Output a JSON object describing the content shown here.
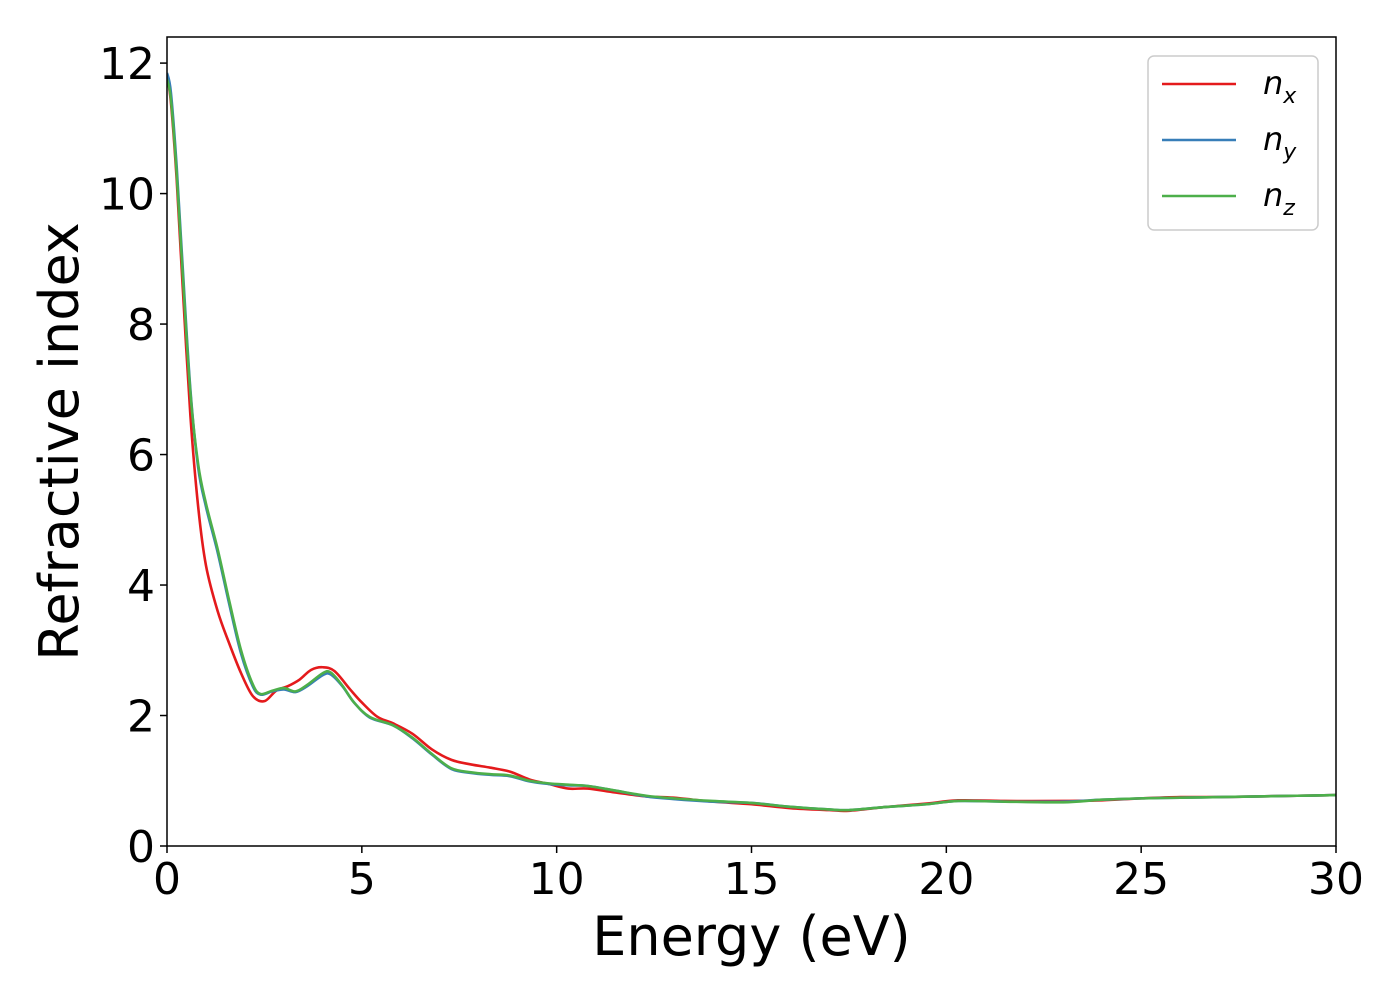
{
  "chart_data": {
    "type": "line",
    "title": "",
    "xlabel": "Energy (eV)",
    "ylabel": "Refractive index",
    "xlim": [
      0,
      30
    ],
    "ylim": [
      0,
      12.4
    ],
    "xticks": [
      0,
      5,
      10,
      15,
      20,
      25,
      30
    ],
    "yticks": [
      0,
      2,
      4,
      6,
      8,
      10,
      12
    ],
    "grid": false,
    "legend_position": "top-right",
    "series": [
      {
        "name": "n",
        "subscript": "x",
        "color": "#e41a1c",
        "points": [
          [
            0,
            11.8
          ],
          [
            0.1,
            11.4
          ],
          [
            0.25,
            10.2
          ],
          [
            0.4,
            8.6
          ],
          [
            0.6,
            6.6
          ],
          [
            0.8,
            5.2
          ],
          [
            1,
            4.3
          ],
          [
            1.3,
            3.6
          ],
          [
            1.6,
            3.1
          ],
          [
            1.9,
            2.65
          ],
          [
            2.2,
            2.3
          ],
          [
            2.5,
            2.22
          ],
          [
            2.8,
            2.38
          ],
          [
            3.1,
            2.45
          ],
          [
            3.4,
            2.55
          ],
          [
            3.7,
            2.7
          ],
          [
            4.0,
            2.74
          ],
          [
            4.3,
            2.68
          ],
          [
            4.7,
            2.4
          ],
          [
            5.0,
            2.2
          ],
          [
            5.4,
            1.98
          ],
          [
            5.8,
            1.88
          ],
          [
            6.3,
            1.72
          ],
          [
            6.8,
            1.48
          ],
          [
            7.3,
            1.32
          ],
          [
            7.8,
            1.25
          ],
          [
            8.3,
            1.2
          ],
          [
            8.8,
            1.14
          ],
          [
            9.3,
            1.02
          ],
          [
            9.8,
            0.95
          ],
          [
            10.3,
            0.88
          ],
          [
            10.8,
            0.88
          ],
          [
            11.5,
            0.82
          ],
          [
            12.3,
            0.76
          ],
          [
            13.0,
            0.74
          ],
          [
            14.0,
            0.68
          ],
          [
            15.0,
            0.64
          ],
          [
            16.0,
            0.58
          ],
          [
            17.0,
            0.55
          ],
          [
            17.5,
            0.54
          ],
          [
            18.5,
            0.6
          ],
          [
            19.5,
            0.65
          ],
          [
            20.3,
            0.7
          ],
          [
            21.5,
            0.69
          ],
          [
            23.0,
            0.69
          ],
          [
            24.0,
            0.7
          ],
          [
            25.0,
            0.73
          ],
          [
            26.0,
            0.75
          ],
          [
            27.0,
            0.75
          ],
          [
            28.0,
            0.76
          ],
          [
            29.0,
            0.77
          ],
          [
            30.0,
            0.78
          ]
        ]
      },
      {
        "name": "n",
        "subscript": "y",
        "color": "#377eb8",
        "points": [
          [
            0,
            11.85
          ],
          [
            0.1,
            11.55
          ],
          [
            0.25,
            10.4
          ],
          [
            0.4,
            8.9
          ],
          [
            0.6,
            7.0
          ],
          [
            0.8,
            5.8
          ],
          [
            1,
            5.2
          ],
          [
            1.3,
            4.5
          ],
          [
            1.6,
            3.7
          ],
          [
            1.9,
            2.95
          ],
          [
            2.2,
            2.45
          ],
          [
            2.4,
            2.32
          ],
          [
            2.7,
            2.37
          ],
          [
            3.0,
            2.4
          ],
          [
            3.3,
            2.36
          ],
          [
            3.6,
            2.45
          ],
          [
            4.0,
            2.62
          ],
          [
            4.2,
            2.63
          ],
          [
            4.5,
            2.45
          ],
          [
            4.8,
            2.2
          ],
          [
            5.2,
            1.97
          ],
          [
            5.8,
            1.85
          ],
          [
            6.3,
            1.65
          ],
          [
            6.8,
            1.4
          ],
          [
            7.3,
            1.18
          ],
          [
            7.8,
            1.12
          ],
          [
            8.3,
            1.09
          ],
          [
            8.8,
            1.07
          ],
          [
            9.3,
            0.99
          ],
          [
            9.8,
            0.95
          ],
          [
            10.3,
            0.93
          ],
          [
            10.8,
            0.92
          ],
          [
            11.5,
            0.85
          ],
          [
            12.3,
            0.76
          ],
          [
            13.0,
            0.72
          ],
          [
            14.0,
            0.68
          ],
          [
            15.0,
            0.66
          ],
          [
            16.0,
            0.6
          ],
          [
            17.0,
            0.56
          ],
          [
            17.5,
            0.55
          ],
          [
            18.5,
            0.6
          ],
          [
            19.5,
            0.64
          ],
          [
            20.3,
            0.69
          ],
          [
            21.5,
            0.68
          ],
          [
            23.0,
            0.68
          ],
          [
            24.0,
            0.71
          ],
          [
            25.0,
            0.73
          ],
          [
            26.0,
            0.74
          ],
          [
            27.0,
            0.75
          ],
          [
            28.0,
            0.76
          ],
          [
            29.0,
            0.77
          ],
          [
            30.0,
            0.78
          ]
        ]
      },
      {
        "name": "n",
        "subscript": "z",
        "color": "#4daf4a",
        "points": [
          [
            0,
            11.75
          ],
          [
            0.1,
            11.45
          ],
          [
            0.25,
            10.3
          ],
          [
            0.4,
            8.8
          ],
          [
            0.6,
            6.95
          ],
          [
            0.8,
            5.85
          ],
          [
            1,
            5.25
          ],
          [
            1.3,
            4.55
          ],
          [
            1.6,
            3.75
          ],
          [
            1.9,
            3.0
          ],
          [
            2.2,
            2.48
          ],
          [
            2.4,
            2.33
          ],
          [
            2.7,
            2.38
          ],
          [
            3.0,
            2.42
          ],
          [
            3.3,
            2.37
          ],
          [
            3.6,
            2.47
          ],
          [
            4.0,
            2.65
          ],
          [
            4.2,
            2.66
          ],
          [
            4.5,
            2.46
          ],
          [
            4.8,
            2.2
          ],
          [
            5.2,
            1.98
          ],
          [
            5.8,
            1.85
          ],
          [
            6.3,
            1.66
          ],
          [
            6.8,
            1.41
          ],
          [
            7.3,
            1.19
          ],
          [
            7.8,
            1.13
          ],
          [
            8.3,
            1.1
          ],
          [
            8.8,
            1.08
          ],
          [
            9.3,
            1.0
          ],
          [
            9.8,
            0.96
          ],
          [
            10.3,
            0.94
          ],
          [
            10.8,
            0.92
          ],
          [
            11.5,
            0.85
          ],
          [
            12.3,
            0.77
          ],
          [
            13.0,
            0.73
          ],
          [
            14.0,
            0.69
          ],
          [
            15.0,
            0.66
          ],
          [
            16.0,
            0.6
          ],
          [
            17.0,
            0.56
          ],
          [
            17.5,
            0.55
          ],
          [
            18.5,
            0.6
          ],
          [
            19.5,
            0.64
          ],
          [
            20.3,
            0.69
          ],
          [
            21.5,
            0.68
          ],
          [
            23.0,
            0.67
          ],
          [
            24.0,
            0.71
          ],
          [
            25.0,
            0.73
          ],
          [
            26.0,
            0.74
          ],
          [
            27.0,
            0.75
          ],
          [
            28.0,
            0.76
          ],
          [
            29.0,
            0.77
          ],
          [
            30.0,
            0.78
          ]
        ]
      }
    ]
  }
}
